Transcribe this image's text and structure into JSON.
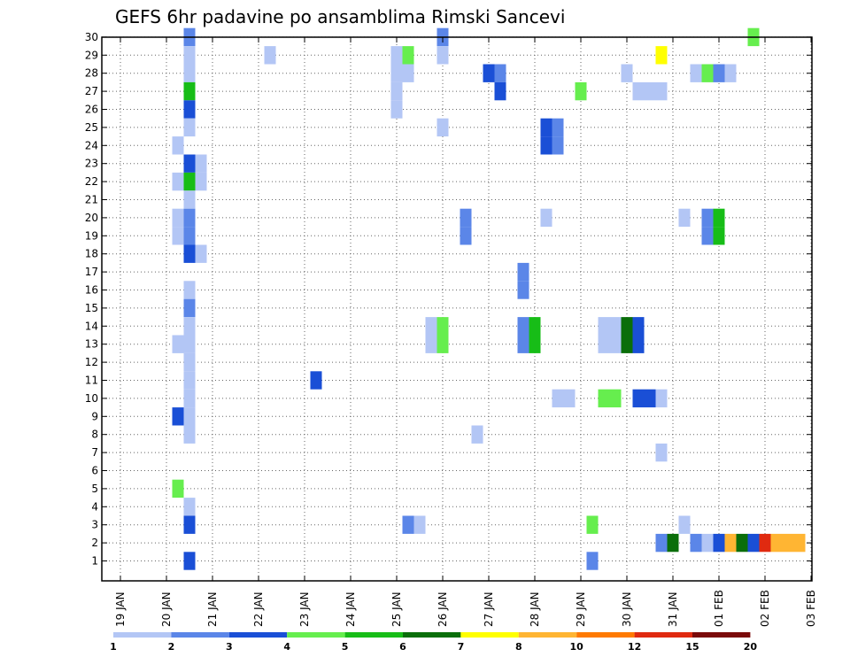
{
  "chart_data": {
    "type": "heatmap",
    "title": "GEFS 6hr padavine po ansamblima Rimski Sancevi",
    "xlabel": "",
    "ylabel": "",
    "y_ticks": [
      "1",
      "2",
      "3",
      "4",
      "5",
      "6",
      "7",
      "8",
      "9",
      "10",
      "11",
      "12",
      "13",
      "14",
      "15",
      "16",
      "17",
      "18",
      "19",
      "20",
      "21",
      "22",
      "23",
      "24",
      "25",
      "26",
      "27",
      "28",
      "29",
      "30"
    ],
    "x_ticks": [
      "19 JAN",
      "20 JAN",
      "21 JAN",
      "22 JAN",
      "23 JAN",
      "24 JAN",
      "25 JAN",
      "26 JAN",
      "27 JAN",
      "28 JAN",
      "29 JAN",
      "30 JAN",
      "31 JAN",
      "01 FEB",
      "02 FEB",
      "03 FEB"
    ],
    "x_range_days": [
      0,
      15
    ],
    "y_range": [
      0.5,
      30.5
    ],
    "grid": true,
    "legend": {
      "placement": "bottom",
      "colors": [
        "#b3c6f5",
        "#5b86e8",
        "#1a4fd6",
        "#66ee4e",
        "#17bd17",
        "#0a6e0a",
        "#ffff00",
        "#ffb533",
        "#ff7a00",
        "#e02a10",
        "#7a0a0a"
      ],
      "labels": [
        "1",
        "2",
        "3",
        "4",
        "5",
        "6",
        "7",
        "8",
        "10",
        "12",
        "15",
        "20"
      ]
    },
    "cell_width_days": 0.25,
    "cells": [
      {
        "t": 1.5,
        "m": 30,
        "v": 2
      },
      {
        "t": 1.5,
        "m": 29,
        "v": 1
      },
      {
        "t": 1.5,
        "m": 28,
        "v": 1
      },
      {
        "t": 1.5,
        "m": 27,
        "v": 5
      },
      {
        "t": 1.5,
        "m": 26,
        "v": 3
      },
      {
        "t": 1.5,
        "m": 25,
        "v": 1
      },
      {
        "t": 1.25,
        "m": 24,
        "v": 1
      },
      {
        "t": 1.5,
        "m": 23,
        "v": 3
      },
      {
        "t": 1.75,
        "m": 23,
        "v": 1
      },
      {
        "t": 1.25,
        "m": 22,
        "v": 1
      },
      {
        "t": 1.5,
        "m": 22,
        "v": 5
      },
      {
        "t": 1.75,
        "m": 22,
        "v": 1
      },
      {
        "t": 1.5,
        "m": 21,
        "v": 1
      },
      {
        "t": 1.25,
        "m": 20,
        "v": 1
      },
      {
        "t": 1.5,
        "m": 20,
        "v": 2
      },
      {
        "t": 1.25,
        "m": 19,
        "v": 1
      },
      {
        "t": 1.5,
        "m": 19,
        "v": 2
      },
      {
        "t": 1.5,
        "m": 18,
        "v": 3
      },
      {
        "t": 1.75,
        "m": 18,
        "v": 1
      },
      {
        "t": 1.5,
        "m": 16,
        "v": 1
      },
      {
        "t": 1.5,
        "m": 15,
        "v": 2
      },
      {
        "t": 1.5,
        "m": 14,
        "v": 1
      },
      {
        "t": 1.25,
        "m": 13,
        "v": 1
      },
      {
        "t": 1.5,
        "m": 13,
        "v": 1
      },
      {
        "t": 1.5,
        "m": 12,
        "v": 1
      },
      {
        "t": 1.5,
        "m": 11,
        "v": 1
      },
      {
        "t": 1.5,
        "m": 10,
        "v": 1
      },
      {
        "t": 1.25,
        "m": 9,
        "v": 3
      },
      {
        "t": 1.5,
        "m": 9,
        "v": 1
      },
      {
        "t": 1.5,
        "m": 8,
        "v": 1
      },
      {
        "t": 1.25,
        "m": 5,
        "v": 4
      },
      {
        "t": 1.5,
        "m": 4,
        "v": 1
      },
      {
        "t": 1.5,
        "m": 3,
        "v": 3
      },
      {
        "t": 1.5,
        "m": 1,
        "v": 3
      },
      {
        "t": 3.25,
        "m": 29,
        "v": 1
      },
      {
        "t": 4.25,
        "m": 11,
        "v": 3
      },
      {
        "t": 6,
        "m": 29,
        "v": 1
      },
      {
        "t": 6,
        "m": 28,
        "v": 1
      },
      {
        "t": 6.25,
        "m": 28,
        "v": 1
      },
      {
        "t": 6,
        "m": 27,
        "v": 1
      },
      {
        "t": 6,
        "m": 26,
        "v": 1
      },
      {
        "t": 6.25,
        "m": 29,
        "v": 4
      },
      {
        "t": 6.25,
        "m": 3,
        "v": 2
      },
      {
        "t": 6.5,
        "m": 3,
        "v": 1
      },
      {
        "t": 6.75,
        "m": 14,
        "v": 1
      },
      {
        "t": 7,
        "m": 14,
        "v": 4
      },
      {
        "t": 6.75,
        "m": 13,
        "v": 1
      },
      {
        "t": 7,
        "m": 13,
        "v": 4
      },
      {
        "t": 7,
        "m": 30,
        "v": 2
      },
      {
        "t": 7,
        "m": 29,
        "v": 1
      },
      {
        "t": 7,
        "m": 25,
        "v": 1
      },
      {
        "t": 7.5,
        "m": 20,
        "v": 2
      },
      {
        "t": 7.5,
        "m": 19,
        "v": 2
      },
      {
        "t": 7.75,
        "m": 8,
        "v": 1
      },
      {
        "t": 8,
        "m": 28,
        "v": 3
      },
      {
        "t": 8.25,
        "m": 28,
        "v": 2
      },
      {
        "t": 8.25,
        "m": 27,
        "v": 3
      },
      {
        "t": 8.75,
        "m": 17,
        "v": 2
      },
      {
        "t": 8.75,
        "m": 16,
        "v": 2
      },
      {
        "t": 8.75,
        "m": 14,
        "v": 2
      },
      {
        "t": 9,
        "m": 14,
        "v": 5
      },
      {
        "t": 8.75,
        "m": 13,
        "v": 2
      },
      {
        "t": 9,
        "m": 13,
        "v": 5
      },
      {
        "t": 9.25,
        "m": 25,
        "v": 3
      },
      {
        "t": 9.5,
        "m": 25,
        "v": 2
      },
      {
        "t": 9.25,
        "m": 24,
        "v": 3
      },
      {
        "t": 9.5,
        "m": 24,
        "v": 2
      },
      {
        "t": 9.25,
        "m": 20,
        "v": 1
      },
      {
        "t": 9.5,
        "m": 10,
        "v": 1
      },
      {
        "t": 9.75,
        "m": 10,
        "v": 1
      },
      {
        "t": 10,
        "m": 27,
        "v": 4
      },
      {
        "t": 10.25,
        "m": 3,
        "v": 4
      },
      {
        "t": 10.25,
        "m": 1,
        "v": 2
      },
      {
        "t": 10.5,
        "m": 10,
        "v": 4
      },
      {
        "t": 10.75,
        "m": 10,
        "v": 4
      },
      {
        "t": 10.5,
        "m": 14,
        "v": 1
      },
      {
        "t": 10.75,
        "m": 14,
        "v": 1
      },
      {
        "t": 10.5,
        "m": 13,
        "v": 1
      },
      {
        "t": 10.75,
        "m": 13,
        "v": 1
      },
      {
        "t": 11,
        "m": 14,
        "v": 6
      },
      {
        "t": 11.25,
        "m": 14,
        "v": 3
      },
      {
        "t": 11,
        "m": 13,
        "v": 6
      },
      {
        "t": 11.25,
        "m": 13,
        "v": 3
      },
      {
        "t": 11,
        "m": 28,
        "v": 1
      },
      {
        "t": 11.25,
        "m": 27,
        "v": 1
      },
      {
        "t": 11.5,
        "m": 27,
        "v": 1
      },
      {
        "t": 11.75,
        "m": 27,
        "v": 1
      },
      {
        "t": 11.25,
        "m": 10,
        "v": 3
      },
      {
        "t": 11.5,
        "m": 10,
        "v": 3
      },
      {
        "t": 11.75,
        "m": 10,
        "v": 1
      },
      {
        "t": 11.75,
        "m": 29,
        "v": 7
      },
      {
        "t": 11.75,
        "m": 7,
        "v": 1
      },
      {
        "t": 11.75,
        "m": 2,
        "v": 2
      },
      {
        "t": 12,
        "m": 2,
        "v": 6
      },
      {
        "t": 12.25,
        "m": 20,
        "v": 1
      },
      {
        "t": 12.25,
        "m": 3,
        "v": 1
      },
      {
        "t": 12.5,
        "m": 2,
        "v": 2
      },
      {
        "t": 12.75,
        "m": 2,
        "v": 1
      },
      {
        "t": 13,
        "m": 2,
        "v": 3
      },
      {
        "t": 13.25,
        "m": 2,
        "v": 8
      },
      {
        "t": 13.5,
        "m": 2,
        "v": 6
      },
      {
        "t": 13.75,
        "m": 2,
        "v": 3
      },
      {
        "t": 14,
        "m": 2,
        "v": 10
      },
      {
        "t": 14.25,
        "m": 2,
        "v": 8
      },
      {
        "t": 14.5,
        "m": 2,
        "v": 8
      },
      {
        "t": 14.75,
        "m": 2,
        "v": 8
      },
      {
        "t": 12.5,
        "m": 28,
        "v": 1
      },
      {
        "t": 12.75,
        "m": 28,
        "v": 4
      },
      {
        "t": 13,
        "m": 28,
        "v": 2
      },
      {
        "t": 13.25,
        "m": 28,
        "v": 1
      },
      {
        "t": 12.75,
        "m": 20,
        "v": 2
      },
      {
        "t": 13,
        "m": 20,
        "v": 5
      },
      {
        "t": 12.75,
        "m": 19,
        "v": 2
      },
      {
        "t": 13,
        "m": 19,
        "v": 5
      },
      {
        "t": 13.75,
        "m": 30,
        "v": 4
      }
    ]
  }
}
